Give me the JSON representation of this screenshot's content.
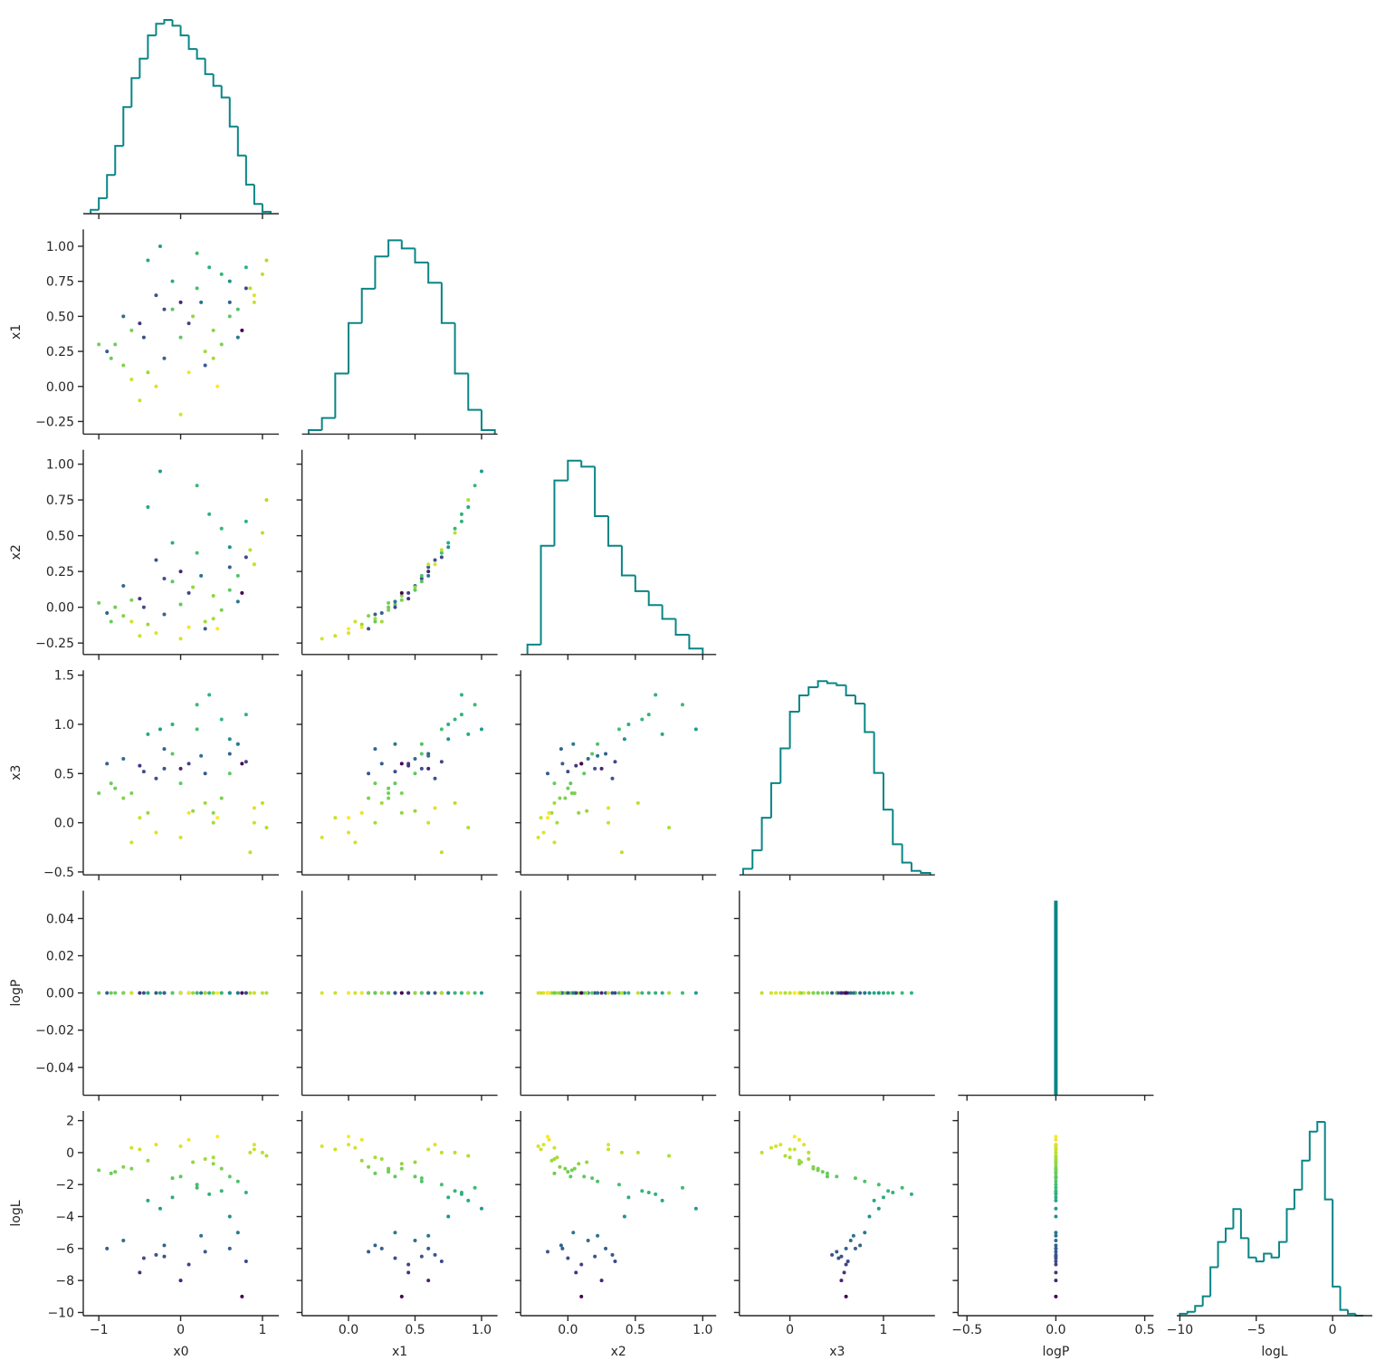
{
  "chart_data": {
    "type": "corner",
    "variables": [
      "x0",
      "x1",
      "x2",
      "x3",
      "logP",
      "logL"
    ],
    "hist_color": "#0a8585",
    "colormap": "viridis",
    "color_by": "logL",
    "axes": [
      {
        "xlim": [
          -1.19,
          1.2
        ],
        "xticks": [
          {
            "value": -1,
            "label": "−1"
          },
          0,
          1
        ]
      },
      {
        "xlim": [
          -0.35,
          1.12
        ],
        "xticks": [
          {
            "value": 0,
            "label": "0.0"
          },
          {
            "value": 0.5,
            "label": "0.5"
          },
          {
            "value": 1,
            "label": "1.0"
          }
        ],
        "ylim": [
          -0.34,
          1.12
        ],
        "yticks": [
          {
            "value": -0.25,
            "label": "−0.25"
          },
          {
            "value": 0,
            "label": "0.00"
          },
          {
            "value": 0.25,
            "label": "0.25"
          },
          {
            "value": 0.5,
            "label": "0.50"
          },
          {
            "value": 0.75,
            "label": "0.75"
          },
          {
            "value": 1,
            "label": "1.00"
          }
        ]
      },
      {
        "xlim": [
          -0.35,
          1.1
        ],
        "xticks": [
          {
            "value": 0,
            "label": "0.0"
          },
          {
            "value": 0.5,
            "label": "0.5"
          },
          {
            "value": 1,
            "label": "1.0"
          }
        ],
        "ylim": [
          -0.33,
          1.1
        ],
        "yticks": [
          {
            "value": -0.25,
            "label": "−0.25"
          },
          {
            "value": 0,
            "label": "0.00"
          },
          {
            "value": 0.25,
            "label": "0.25"
          },
          {
            "value": 0.5,
            "label": "0.50"
          },
          {
            "value": 0.75,
            "label": "0.75"
          },
          {
            "value": 1,
            "label": "1.00"
          }
        ]
      },
      {
        "xlim": [
          -0.54,
          1.55
        ],
        "xticks": [
          0,
          1
        ],
        "ylim": [
          -0.53,
          1.55
        ],
        "yticks": [
          {
            "value": -0.5,
            "label": "−0.5"
          },
          {
            "value": 0,
            "label": "0.0"
          },
          {
            "value": 0.5,
            "label": "0.5"
          },
          {
            "value": 1,
            "label": "1.0"
          },
          {
            "value": 1.5,
            "label": "1.5"
          }
        ]
      },
      {
        "xlim": [
          -0.55,
          0.55
        ],
        "xticks": [
          {
            "value": -0.5,
            "label": "−0.5"
          },
          {
            "value": 0,
            "label": "0.0"
          },
          {
            "value": 0.5,
            "label": "0.5"
          }
        ],
        "ylim": [
          -0.055,
          0.055
        ],
        "yticks": [
          {
            "value": -0.04,
            "label": "−0.04"
          },
          {
            "value": -0.02,
            "label": "−0.02"
          },
          {
            "value": 0,
            "label": "0.00"
          },
          {
            "value": 0.02,
            "label": "0.02"
          },
          {
            "value": 0.04,
            "label": "0.04"
          }
        ]
      },
      {
        "xlim": [
          -10.2,
          2.6
        ],
        "xticks": [
          {
            "value": -10,
            "label": "−10"
          },
          {
            "value": -5,
            "label": "−5"
          },
          0
        ],
        "ylim": [
          -10.2,
          2.6
        ],
        "yticks": [
          {
            "value": -10,
            "label": "−10"
          },
          {
            "value": -8,
            "label": "−8"
          },
          {
            "value": -6,
            "label": "−6"
          },
          {
            "value": -4,
            "label": "−4"
          },
          {
            "value": -2,
            "label": "−2"
          },
          0,
          2
        ]
      }
    ],
    "histograms": [
      {
        "bins": [
          -1.1,
          -1.0,
          -0.9,
          -0.8,
          -0.7,
          -0.6,
          -0.5,
          -0.4,
          -0.3,
          -0.2,
          -0.1,
          0.0,
          0.1,
          0.2,
          0.3,
          0.4,
          0.5,
          0.6,
          0.7,
          0.8,
          0.9,
          1.0,
          1.1
        ],
        "counts": [
          2,
          8,
          20,
          35,
          55,
          70,
          80,
          92,
          98,
          100,
          97,
          92,
          85,
          80,
          72,
          66,
          60,
          45,
          30,
          15,
          5,
          1
        ]
      },
      {
        "bins": [
          -0.3,
          -0.2,
          -0.1,
          0.0,
          0.1,
          0.2,
          0.3,
          0.4,
          0.5,
          0.6,
          0.7,
          0.8,
          0.9,
          1.0,
          1.1
        ],
        "counts": [
          2,
          8,
          30,
          55,
          72,
          88,
          96,
          92,
          85,
          75,
          55,
          30,
          12,
          2
        ]
      },
      {
        "bins": [
          -0.3,
          -0.2,
          -0.1,
          0.0,
          0.1,
          0.2,
          0.3,
          0.4,
          0.5,
          0.6,
          0.7,
          0.8,
          0.9,
          1.0
        ],
        "counts": [
          5,
          55,
          88,
          98,
          95,
          70,
          55,
          40,
          32,
          25,
          18,
          10,
          3
        ]
      },
      {
        "bins": [
          -0.5,
          -0.4,
          -0.3,
          -0.2,
          -0.1,
          0.0,
          0.1,
          0.2,
          0.3,
          0.4,
          0.5,
          0.6,
          0.7,
          0.8,
          0.9,
          1.0,
          1.1,
          1.2,
          1.3,
          1.4,
          1.5
        ],
        "counts": [
          3,
          12,
          28,
          45,
          62,
          80,
          88,
          92,
          95,
          94,
          93,
          88,
          84,
          70,
          50,
          32,
          15,
          6,
          2,
          1
        ]
      },
      {
        "bins": [
          -0.005,
          0.005
        ],
        "counts": [
          100
        ]
      },
      {
        "bins": [
          -10,
          -9.5,
          -9,
          -8.5,
          -8,
          -7.5,
          -7,
          -6.5,
          -6,
          -5.5,
          -5,
          -4.5,
          -4,
          -3.5,
          -3,
          -2.5,
          -2,
          -1.5,
          -1,
          -0.5,
          0,
          0.5,
          1,
          1.5,
          2
        ],
        "counts": [
          1,
          2,
          5,
          10,
          25,
          38,
          45,
          55,
          40,
          30,
          28,
          32,
          30,
          38,
          55,
          65,
          80,
          95,
          100,
          60,
          15,
          3,
          1,
          0
        ]
      }
    ],
    "samples": {
      "x0": [
        -0.9,
        -0.6,
        -0.4,
        -0.2,
        0.0,
        0.2,
        0.4,
        0.6,
        0.8,
        1.0,
        -0.7,
        -0.3,
        0.1,
        0.5,
        0.9,
        -0.5,
        -0.1,
        0.3,
        0.7,
        -0.8,
        -0.4,
        0.0,
        0.4,
        0.8,
        -0.6,
        -0.2,
        0.2,
        0.6,
        1.05,
        -1.0,
        -0.3,
        0.1,
        0.5,
        -0.5,
        0.3,
        0.7,
        -0.1,
        0.6,
        0.9,
        -0.7,
        0.0,
        0.35,
        -0.45,
        0.15,
        0.75,
        -0.25,
        0.45,
        -0.85,
        0.25,
        0.85
      ],
      "x1": [
        0.25,
        0.4,
        0.1,
        0.55,
        0.35,
        0.7,
        0.2,
        0.6,
        0.85,
        0.8,
        0.5,
        0.0,
        0.45,
        0.3,
        0.65,
        -0.1,
        0.75,
        0.15,
        0.55,
        0.3,
        0.9,
        0.6,
        0.4,
        0.7,
        0.05,
        0.2,
        0.95,
        0.5,
        0.9,
        0.3,
        0.65,
        0.1,
        0.8,
        0.45,
        0.25,
        0.35,
        0.55,
        0.75,
        0.6,
        0.15,
        -0.2,
        0.85,
        0.35,
        0.5,
        0.4,
        1.0,
        0.0,
        0.2,
        0.6,
        0.7
      ],
      "x2": [
        -0.04,
        0.05,
        -0.12,
        0.2,
        0.02,
        0.38,
        -0.08,
        0.28,
        0.6,
        0.52,
        0.15,
        -0.18,
        0.1,
        -0.02,
        0.3,
        -0.2,
        0.45,
        -0.15,
        0.22,
        0.0,
        0.7,
        0.25,
        0.08,
        0.35,
        -0.1,
        -0.05,
        0.85,
        0.12,
        0.75,
        0.03,
        0.33,
        -0.14,
        0.55,
        0.06,
        -0.1,
        0.04,
        0.18,
        0.42,
        0.3,
        -0.06,
        -0.22,
        0.65,
        0.0,
        0.14,
        0.1,
        0.95,
        -0.15,
        -0.1,
        0.22,
        0.4
      ],
      "x3": [
        0.6,
        0.3,
        0.1,
        0.55,
        0.4,
        0.95,
        0.0,
        0.7,
        1.1,
        0.2,
        0.65,
        -0.1,
        0.6,
        0.25,
        0.15,
        0.05,
        1.0,
        0.5,
        0.8,
        0.35,
        0.9,
        0.55,
        0.1,
        0.62,
        -0.2,
        0.75,
        1.2,
        0.5,
        -0.05,
        0.3,
        0.45,
        0.1,
        1.05,
        0.58,
        0.2,
        0.8,
        0.7,
        0.85,
        0.0,
        0.25,
        -0.15,
        1.3,
        0.52,
        0.12,
        0.6,
        0.95,
        0.05,
        0.4,
        0.68,
        -0.3
      ],
      "logP": [
        0,
        0,
        0,
        0,
        0,
        0,
        0,
        0,
        0,
        0,
        0,
        0,
        0,
        0,
        0,
        0,
        0,
        0,
        0,
        0,
        0,
        0,
        0,
        0,
        0,
        0,
        0,
        0,
        0,
        0,
        0,
        0,
        0,
        0,
        0,
        0,
        0,
        0,
        0,
        0,
        0,
        0,
        0,
        0,
        0,
        0,
        0,
        0,
        0,
        0
      ],
      "logL": [
        -6,
        -1,
        -0.5,
        -6.5,
        -1.5,
        -2,
        -0.3,
        -6,
        -2.5,
        0,
        -5.5,
        0.5,
        -7,
        -1,
        0.5,
        0.2,
        -2.8,
        -6.2,
        -1.8,
        -1.2,
        -3,
        -8,
        -0.7,
        -6.8,
        0.3,
        -5.8,
        -2.2,
        -1.5,
        -0.2,
        -1.1,
        -6.4,
        0.8,
        -2.4,
        -7.5,
        -0.4,
        -5,
        -1.6,
        -4,
        0.2,
        -0.9,
        0.4,
        -2.6,
        -6.6,
        -0.6,
        -9,
        -3.5,
        1.0,
        -1.3,
        -5.2,
        0.0
      ]
    }
  }
}
